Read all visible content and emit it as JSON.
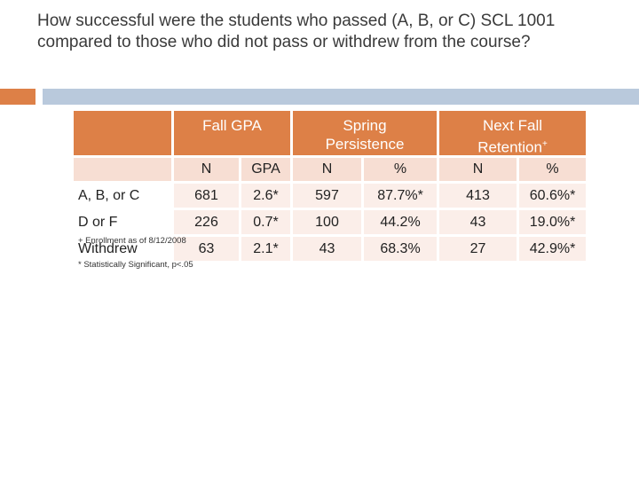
{
  "title": "How successful were the students who passed (A, B, or C) SCL 1001 compared to those who did not pass or withdrew from the course?",
  "table": {
    "header_groups": [
      "Fall GPA",
      "Spring Persistence",
      "Next Fall Retention"
    ],
    "retention_marker": "+",
    "columns": [
      "N",
      "GPA",
      "N",
      "%",
      "N",
      "%"
    ],
    "rows": [
      [
        "A, B, or C",
        "681",
        "2.6*",
        "597",
        "87.7%*",
        "413",
        "60.6%*"
      ],
      [
        "D or F",
        "226",
        "0.7*",
        "100",
        "44.2%",
        "43",
        "19.0%*"
      ],
      [
        "Withdrew",
        "63",
        "2.1*",
        "43",
        "68.3%",
        "27",
        "42.9%*"
      ]
    ]
  },
  "footnotes": [
    "+ Enrollment as of 8/12/2008",
    "* Statistically Significant, p<.05"
  ]
}
